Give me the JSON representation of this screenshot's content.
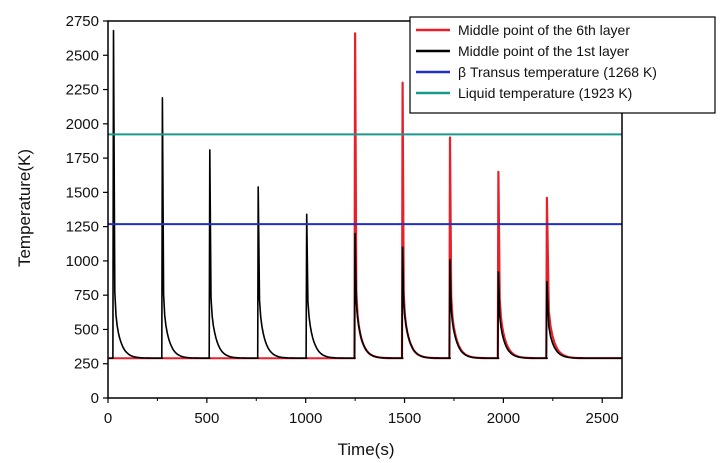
{
  "chart_data": {
    "type": "line",
    "title": "",
    "xlabel": "Time(s)",
    "ylabel": "Temperature(K)",
    "xlim": [
      0,
      2600
    ],
    "ylim": [
      0,
      2750
    ],
    "x_ticks": [
      0,
      500,
      1000,
      1500,
      2000,
      2500
    ],
    "y_ticks": [
      0,
      250,
      500,
      750,
      1000,
      1250,
      1500,
      1750,
      2000,
      2250,
      2500,
      2750
    ],
    "grid": false,
    "legend_position": "top-right",
    "baseline_temperature": 290,
    "series": [
      {
        "name": "Middle point of the 6th layer",
        "color": "#e8202a",
        "peaks": [
          {
            "t": 1250,
            "peak": 2660
          },
          {
            "t": 1490,
            "peak": 2300
          },
          {
            "t": 1730,
            "peak": 1900
          },
          {
            "t": 1975,
            "peak": 1650
          },
          {
            "t": 2220,
            "peak": 1460
          }
        ],
        "baseline_span": [
          0,
          1250
        ]
      },
      {
        "name": "Middle point of the 1st layer",
        "color": "#000000",
        "peaks": [
          {
            "t": 28,
            "peak": 2680
          },
          {
            "t": 275,
            "peak": 2190
          },
          {
            "t": 515,
            "peak": 1810
          },
          {
            "t": 760,
            "peak": 1540
          },
          {
            "t": 1005,
            "peak": 1340
          },
          {
            "t": 1250,
            "peak": 1200
          },
          {
            "t": 1490,
            "peak": 1100
          },
          {
            "t": 1730,
            "peak": 1010
          },
          {
            "t": 1975,
            "peak": 920
          },
          {
            "t": 2220,
            "peak": 850
          }
        ]
      },
      {
        "name": "β Transus temperature (1268 K)",
        "color": "#1f2fc4",
        "value": 1268
      },
      {
        "name": "Liquid temperature (1923 K)",
        "color": "#1a9a8c",
        "value": 1923
      }
    ]
  }
}
